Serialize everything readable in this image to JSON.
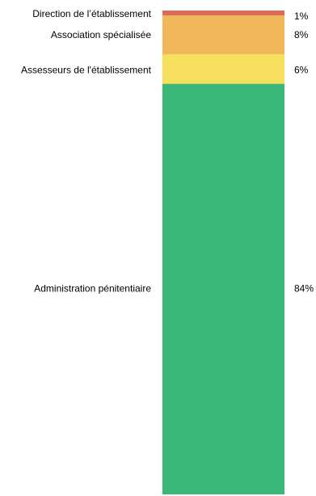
{
  "chart_data": {
    "type": "bar",
    "orientation": "stacked-vertical",
    "categories": [
      "Direction de l’établissement",
      "Association spécialisée",
      "Assesseurs de l'établissement",
      "Administration pénitentiaire"
    ],
    "values": [
      1,
      8,
      6,
      84
    ],
    "value_labels": [
      "1%",
      "8%",
      "6%",
      "84%"
    ],
    "colors": [
      "#dc6b5a",
      "#f2b65a",
      "#f6e05e",
      "#3bb878"
    ],
    "legend": "none",
    "grid": false
  }
}
